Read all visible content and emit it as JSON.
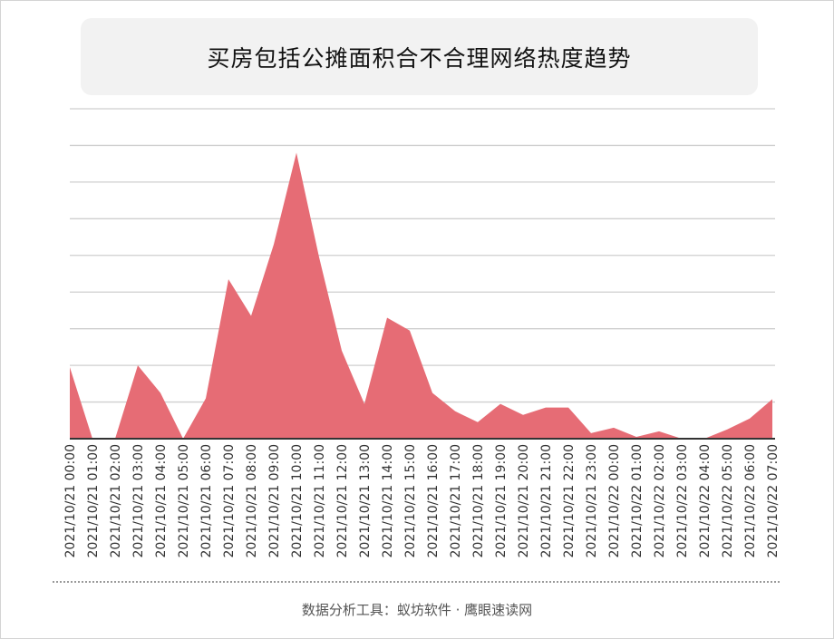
{
  "title": "买房包括公摊面积合不合理网络热度趋势",
  "footer": "数据分析工具：蚁坊软件 · 鹰眼速读网",
  "colors": {
    "area": "#e66c75",
    "grid": "#cfcfcf",
    "axis": "#333333"
  },
  "chart_data": {
    "type": "area",
    "title": "买房包括公摊面积合不合理网络热度趋势",
    "xlabel": "",
    "ylabel": "",
    "ylim": [
      0,
      9
    ],
    "grid": true,
    "categories": [
      "2021/10/21 00:00",
      "2021/10/21 01:00",
      "2021/10/21 02:00",
      "2021/10/21 03:00",
      "2021/10/21 04:00",
      "2021/10/21 05:00",
      "2021/10/21 06:00",
      "2021/10/21 07:00",
      "2021/10/21 08:00",
      "2021/10/21 09:00",
      "2021/10/21 10:00",
      "2021/10/21 11:00",
      "2021/10/21 12:00",
      "2021/10/21 13:00",
      "2021/10/21 14:00",
      "2021/10/21 15:00",
      "2021/10/21 16:00",
      "2021/10/21 17:00",
      "2021/10/21 18:00",
      "2021/10/21 19:00",
      "2021/10/21 20:00",
      "2021/10/21 21:00",
      "2021/10/21 22:00",
      "2021/10/21 23:00",
      "2021/10/22 00:00",
      "2021/10/22 01:00",
      "2021/10/22 02:00",
      "2021/10/22 03:00",
      "2021/10/22 04:00",
      "2021/10/22 05:00",
      "2021/10/22 06:00",
      "2021/10/22 07:00"
    ],
    "values": [
      1.95,
      0,
      0,
      2.0,
      1.25,
      0,
      1.1,
      4.35,
      3.35,
      5.3,
      7.8,
      4.95,
      2.4,
      0.95,
      3.3,
      2.95,
      1.25,
      0.75,
      0.45,
      0.95,
      0.65,
      0.85,
      0.85,
      0.15,
      0.3,
      0.05,
      0.2,
      0,
      0,
      0.25,
      0.55,
      1.08
    ]
  }
}
